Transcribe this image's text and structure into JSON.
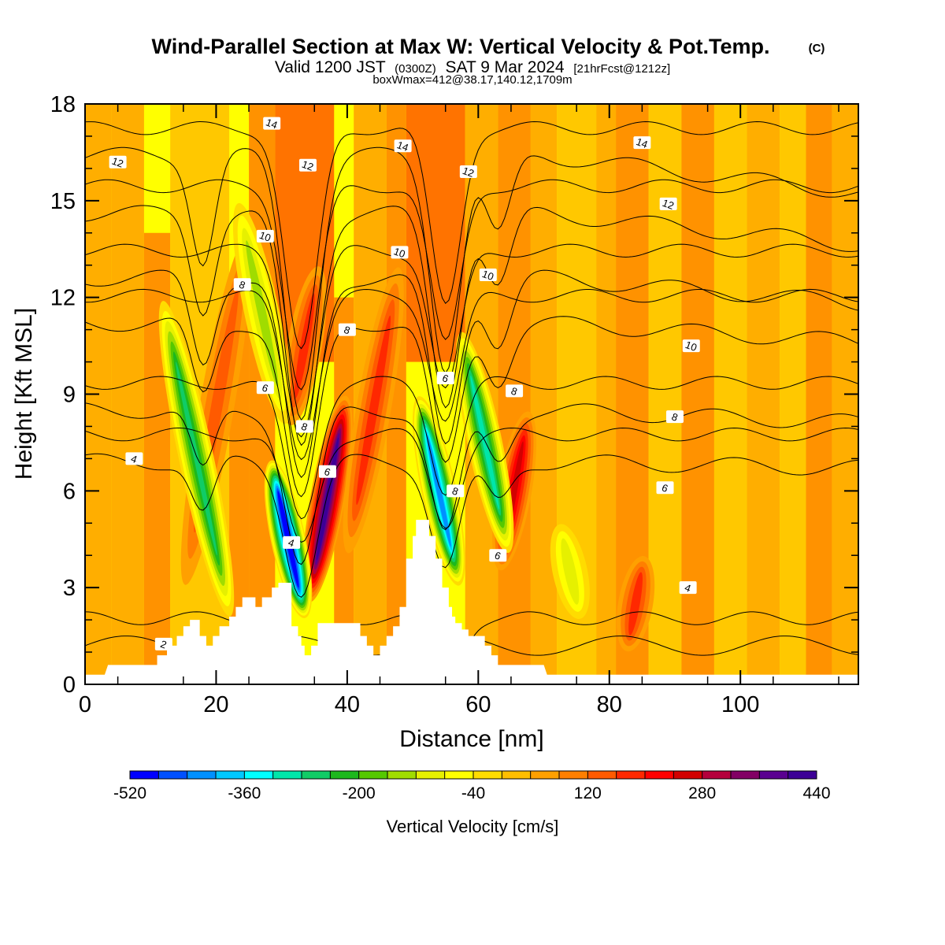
{
  "chart_data": {
    "type": "heatmap",
    "title": "Wind-Parallel Section at Max W: Vertical Velocity & Pot.Temp.",
    "title_mark": "(C)",
    "subtitle_parts": [
      "Valid 1200 JST",
      "(0300Z)",
      "SAT 9 Mar 2024",
      "[21hrFcst@1212z]"
    ],
    "subtitle2": "boxWmax=412@38.17,140.12,1709m",
    "xlabel": "Distance [nm]",
    "ylabel": "Height [Kft MSL]",
    "xlim": [
      0,
      118
    ],
    "ylim": [
      0,
      18
    ],
    "x_ticks": [
      0,
      20,
      40,
      60,
      80,
      100
    ],
    "y_ticks": [
      0,
      3,
      6,
      9,
      12,
      15,
      18
    ],
    "colorbar": {
      "label": "Vertical Velocity [cm/s]",
      "min": -520,
      "max": 440,
      "step": 40,
      "tick_labels": [
        "-520",
        "-360",
        "-200",
        "-40",
        "120",
        "280",
        "440"
      ],
      "colors": [
        "#0000ff",
        "#0050ff",
        "#0090ff",
        "#00c8ff",
        "#00ffff",
        "#00e6aa",
        "#10cc66",
        "#1db81d",
        "#55c800",
        "#a0dc00",
        "#e6f000",
        "#ffff00",
        "#ffdc00",
        "#ffbe00",
        "#ffa000",
        "#ff7f00",
        "#ff5a00",
        "#ff2800",
        "#ff0000",
        "#d20000",
        "#b4003c",
        "#820064",
        "#5a0090",
        "#3c0096"
      ]
    },
    "updraft_cores": [
      {
        "x": 37,
        "y_range": [
          2.5,
          9
        ],
        "w": 340
      },
      {
        "x": 65.5,
        "y_range": [
          3.5,
          8.5
        ],
        "w": 200
      },
      {
        "x": 33.5,
        "y_range": [
          8,
          13
        ],
        "w": 100
      },
      {
        "x": 44,
        "y_range": [
          4,
          13
        ],
        "w": 100
      },
      {
        "x": 20,
        "y_range": [
          3,
          14
        ],
        "w": 80
      },
      {
        "x": 84,
        "y_range": [
          1,
          4
        ],
        "w": 120
      }
    ],
    "downdraft_cores": [
      {
        "x": 31,
        "y_range": [
          2,
          7
        ],
        "w": -500
      },
      {
        "x": 54,
        "y_range": [
          3,
          9
        ],
        "w": -380
      },
      {
        "x": 17,
        "y_range": [
          2,
          12
        ],
        "w": -220
      },
      {
        "x": 61,
        "y_range": [
          4,
          11
        ],
        "w": -260
      },
      {
        "x": 27,
        "y_range": [
          8,
          15
        ],
        "w": -120
      },
      {
        "x": 74,
        "y_range": [
          2,
          5
        ],
        "w": -60
      }
    ],
    "terrain": [
      [
        0,
        0.3
      ],
      [
        3,
        0.3
      ],
      [
        3.5,
        0.6
      ],
      [
        11,
        0.6
      ],
      [
        11,
        0.9
      ],
      [
        12.5,
        0.9
      ],
      [
        12.5,
        1.2
      ],
      [
        14,
        1.2
      ],
      [
        14,
        1.5
      ],
      [
        15,
        1.5
      ],
      [
        15,
        1.8
      ],
      [
        16,
        1.8
      ],
      [
        16,
        2.0
      ],
      [
        17.5,
        2.0
      ],
      [
        17.5,
        1.5
      ],
      [
        18.5,
        1.5
      ],
      [
        18.5,
        1.2
      ],
      [
        19.5,
        1.2
      ],
      [
        19.5,
        1.5
      ],
      [
        20.5,
        1.5
      ],
      [
        20.5,
        1.8
      ],
      [
        22,
        1.8
      ],
      [
        22,
        2.1
      ],
      [
        23,
        2.1
      ],
      [
        23,
        2.4
      ],
      [
        24,
        2.4
      ],
      [
        24,
        2.7
      ],
      [
        26,
        2.7
      ],
      [
        26,
        2.4
      ],
      [
        27,
        2.4
      ],
      [
        27,
        2.7
      ],
      [
        28.5,
        2.7
      ],
      [
        28.5,
        3.0
      ],
      [
        29.5,
        3.0
      ],
      [
        29.5,
        3.15
      ],
      [
        31.5,
        3.15
      ],
      [
        31.5,
        1.8
      ],
      [
        32.5,
        1.8
      ],
      [
        32.5,
        1.5
      ],
      [
        33,
        1.5
      ],
      [
        33,
        1.2
      ],
      [
        33.5,
        1.2
      ],
      [
        33.5,
        0.9
      ],
      [
        34.5,
        0.9
      ],
      [
        34.5,
        1.2
      ],
      [
        35.5,
        1.2
      ],
      [
        35.5,
        1.9
      ],
      [
        39,
        1.9
      ],
      [
        42,
        1.9
      ],
      [
        42,
        1.5
      ],
      [
        43,
        1.5
      ],
      [
        43,
        1.2
      ],
      [
        44,
        1.2
      ],
      [
        44,
        0.9
      ],
      [
        45,
        0.9
      ],
      [
        45,
        1.2
      ],
      [
        46,
        1.2
      ],
      [
        46,
        1.5
      ],
      [
        47,
        1.5
      ],
      [
        47,
        1.8
      ],
      [
        48,
        1.8
      ],
      [
        48,
        2.4
      ],
      [
        49,
        2.4
      ],
      [
        49,
        3.9
      ],
      [
        50,
        3.9
      ],
      [
        50,
        4.6
      ],
      [
        50.5,
        4.6
      ],
      [
        50.5,
        5.1
      ],
      [
        52.5,
        5.1
      ],
      [
        52.5,
        4.6
      ],
      [
        53,
        4.6
      ],
      [
        53.5,
        4.6
      ],
      [
        53.5,
        3.9
      ],
      [
        54.5,
        3.9
      ],
      [
        54.5,
        3.0
      ],
      [
        55.5,
        3.0
      ],
      [
        55.5,
        2.4
      ],
      [
        56,
        2.4
      ],
      [
        56,
        2.1
      ],
      [
        56.5,
        2.1
      ],
      [
        56.5,
        1.9
      ],
      [
        57.5,
        1.9
      ],
      [
        57.5,
        1.7
      ],
      [
        58.5,
        1.7
      ],
      [
        58.5,
        1.5
      ],
      [
        61,
        1.5
      ],
      [
        61,
        1.2
      ],
      [
        62,
        1.2
      ],
      [
        62,
        0.9
      ],
      [
        63,
        0.9
      ],
      [
        63,
        0.6
      ],
      [
        70,
        0.6
      ],
      [
        70.5,
        0.3
      ],
      [
        118,
        0.3
      ]
    ],
    "theta_contours": [
      {
        "level": "2",
        "labels": [
          [
            12,
            1.25
          ]
        ],
        "base": 1.2
      },
      {
        "level": "4",
        "labels": [
          [
            7.5,
            7.0
          ],
          [
            31.5,
            4.4
          ],
          [
            92,
            3.0
          ]
        ],
        "base": 6.9
      },
      {
        "level": "6",
        "labels": [
          [
            27.5,
            9.2
          ],
          [
            37,
            6.6
          ],
          [
            55,
            9.5
          ],
          [
            63,
            4.0
          ],
          [
            88.5,
            6.1
          ]
        ],
        "base": 8.5
      },
      {
        "level": "8",
        "labels": [
          [
            24,
            12.4
          ],
          [
            33.5,
            8.0
          ],
          [
            40,
            11.0
          ],
          [
            56.5,
            6.0
          ],
          [
            65.5,
            9.1
          ],
          [
            90,
            8.3
          ]
        ],
        "base": 11.2
      },
      {
        "level": "10",
        "labels": [
          [
            27.5,
            13.9
          ],
          [
            48,
            13.4
          ],
          [
            61.5,
            12.7
          ],
          [
            92.5,
            10.5
          ]
        ],
        "base": 12.6
      },
      {
        "level": "12",
        "labels": [
          [
            5,
            16.2
          ],
          [
            34,
            16.1
          ],
          [
            58.5,
            15.9
          ],
          [
            89,
            14.9
          ]
        ],
        "base": 14.6
      },
      {
        "level": "14",
        "labels": [
          [
            28.5,
            17.4
          ],
          [
            48.5,
            16.7
          ],
          [
            85,
            16.8
          ]
        ],
        "base": 16.4
      }
    ]
  }
}
